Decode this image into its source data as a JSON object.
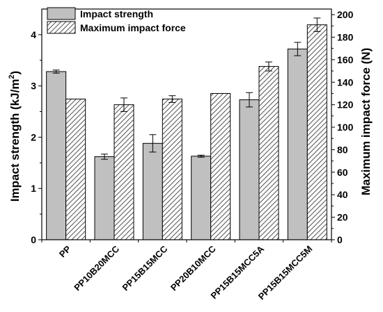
{
  "chart_data": {
    "type": "bar",
    "categories": [
      "PP",
      "PP10B20MCC",
      "PP15B15MCC",
      "PP20B10MCC",
      "PP15B15MCC5A",
      "PP15B15MCC5M"
    ],
    "series": [
      {
        "name": "Impact strength",
        "axis": "left",
        "values": [
          3.28,
          1.62,
          1.88,
          1.63,
          2.73,
          3.72
        ],
        "errors": [
          0.03,
          0.05,
          0.17,
          0.02,
          0.14,
          0.13
        ],
        "color": "#c0c0c0",
        "pattern": "solid"
      },
      {
        "name": "Maximum impact force",
        "axis": "right",
        "values": [
          125,
          120,
          125,
          130,
          154,
          191
        ],
        "errors": [
          0,
          6,
          3,
          0,
          4,
          6
        ],
        "color": "#ffffff",
        "pattern": "diagonal-hatch"
      }
    ],
    "ylabel_left": "Impact strength (kJ/m",
    "ylabel_left_sup": "2",
    "ylabel_left_close": ")",
    "ylabel_right": "Maximum impact force (N)",
    "ylim_left": [
      0,
      4.5
    ],
    "ylim_right": [
      0,
      205
    ],
    "yticks_left": [
      "0",
      "1",
      "2",
      "3",
      "4"
    ],
    "yticks_right": [
      "0",
      "20",
      "40",
      "60",
      "80",
      "100",
      "120",
      "140",
      "160",
      "180",
      "200"
    ],
    "legend": "top-left",
    "grid": false
  }
}
